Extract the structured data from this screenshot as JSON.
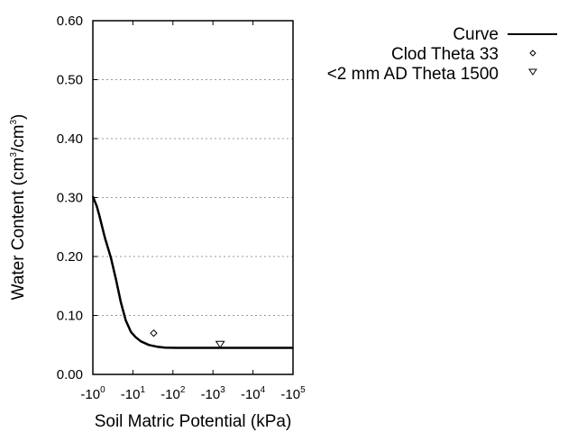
{
  "chart_data": {
    "type": "line",
    "title": "",
    "xlabel": "Soil Matric Potential (kPa)",
    "ylabel": "Water Content (cm3/cm3)",
    "ylabel_parts": [
      "Water Content (cm",
      "3",
      "/cm",
      "3",
      ")"
    ],
    "x_scale": "log",
    "xlim_log10": [
      0,
      5
    ],
    "ylim": [
      0,
      0.6
    ],
    "x_ticks": [
      {
        "base": "-10",
        "exp": "0"
      },
      {
        "base": "-10",
        "exp": "1"
      },
      {
        "base": "-10",
        "exp": "2"
      },
      {
        "base": "-10",
        "exp": "3"
      },
      {
        "base": "-10",
        "exp": "4"
      },
      {
        "base": "-10",
        "exp": "5"
      }
    ],
    "y_ticks": [
      "0.00",
      "0.10",
      "0.20",
      "0.30",
      "0.40",
      "0.50",
      "0.60"
    ],
    "y_tick_values": [
      0,
      0.1,
      0.2,
      0.3,
      0.4,
      0.5,
      0.6
    ],
    "grid": {
      "y": true,
      "x": false,
      "style": "dotted",
      "color": "#999999"
    },
    "legend_position": "right-top",
    "series": [
      {
        "name": "Curve",
        "kind": "line",
        "color": "#000000",
        "points_log10x_y": [
          [
            0.0,
            0.302
          ],
          [
            0.1,
            0.285
          ],
          [
            0.16,
            0.27
          ],
          [
            0.3,
            0.232
          ],
          [
            0.45,
            0.198
          ],
          [
            0.58,
            0.16
          ],
          [
            0.7,
            0.122
          ],
          [
            0.82,
            0.092
          ],
          [
            0.95,
            0.072
          ],
          [
            1.07,
            0.063
          ],
          [
            1.2,
            0.056
          ],
          [
            1.4,
            0.05
          ],
          [
            1.6,
            0.047
          ],
          [
            1.8,
            0.0455
          ],
          [
            2.1,
            0.045
          ],
          [
            3.0,
            0.045
          ],
          [
            4.0,
            0.045
          ],
          [
            5.0,
            0.045
          ]
        ]
      },
      {
        "name": "Clod Theta 33",
        "kind": "marker",
        "marker": "diamond",
        "points_log10x_y": [
          [
            1.52,
            0.07
          ]
        ]
      },
      {
        "name": "<2 mm AD Theta 1500",
        "kind": "marker",
        "marker": "triangle-down",
        "points_log10x_y": [
          [
            3.18,
            0.05
          ]
        ]
      }
    ]
  }
}
